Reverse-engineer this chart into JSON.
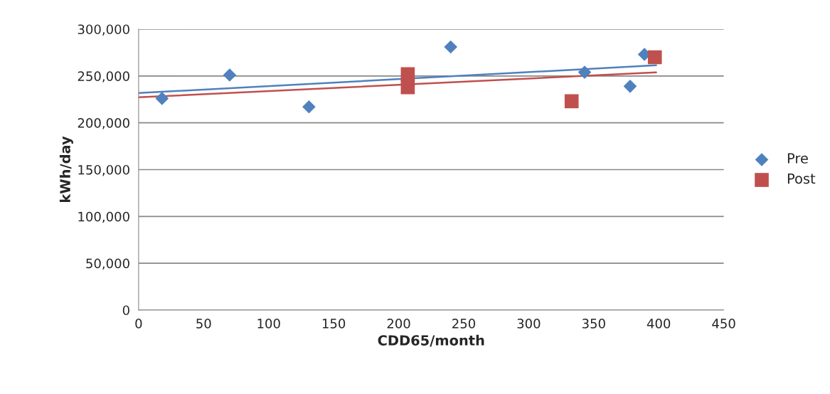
{
  "chart_data": {
    "type": "scatter",
    "xlabel": "CDD65/month",
    "ylabel": "kWh/day",
    "xlim": [
      0,
      450
    ],
    "xticks": [
      0,
      50,
      100,
      150,
      200,
      250,
      300,
      350,
      400,
      450
    ],
    "ylim": [
      0,
      300000
    ],
    "yticks": [
      {
        "value": 0,
        "label": "0"
      },
      {
        "value": 50000,
        "label": "50,000"
      },
      {
        "value": 100000,
        "label": "100,000"
      },
      {
        "value": 150000,
        "label": "150,000"
      },
      {
        "value": 200000,
        "label": "200,000"
      },
      {
        "value": 250000,
        "label": "250,000"
      },
      {
        "value": 300000,
        "label": "300,000"
      }
    ],
    "grid": "y",
    "legend": "right",
    "series": [
      {
        "name": "Pre",
        "color": "#4f81bd",
        "marker": "diamond",
        "x": [
          18,
          70,
          131,
          240,
          343,
          378,
          389
        ],
        "values": [
          226000,
          251000,
          217000,
          281000,
          254000,
          239000,
          273000
        ]
      },
      {
        "name": "Post",
        "color": "#c0504d",
        "marker": "square",
        "x": [
          207,
          207,
          333,
          397
        ],
        "values": [
          252000,
          238000,
          223000,
          270000
        ]
      },
      {
        "type": "line",
        "color": "#4f81bd",
        "x": [
          0,
          398
        ],
        "values": [
          231800,
          261400
        ]
      },
      {
        "type": "line",
        "color": "#c0504d",
        "x": [
          0,
          398
        ],
        "values": [
          227200,
          253800
        ]
      }
    ]
  }
}
